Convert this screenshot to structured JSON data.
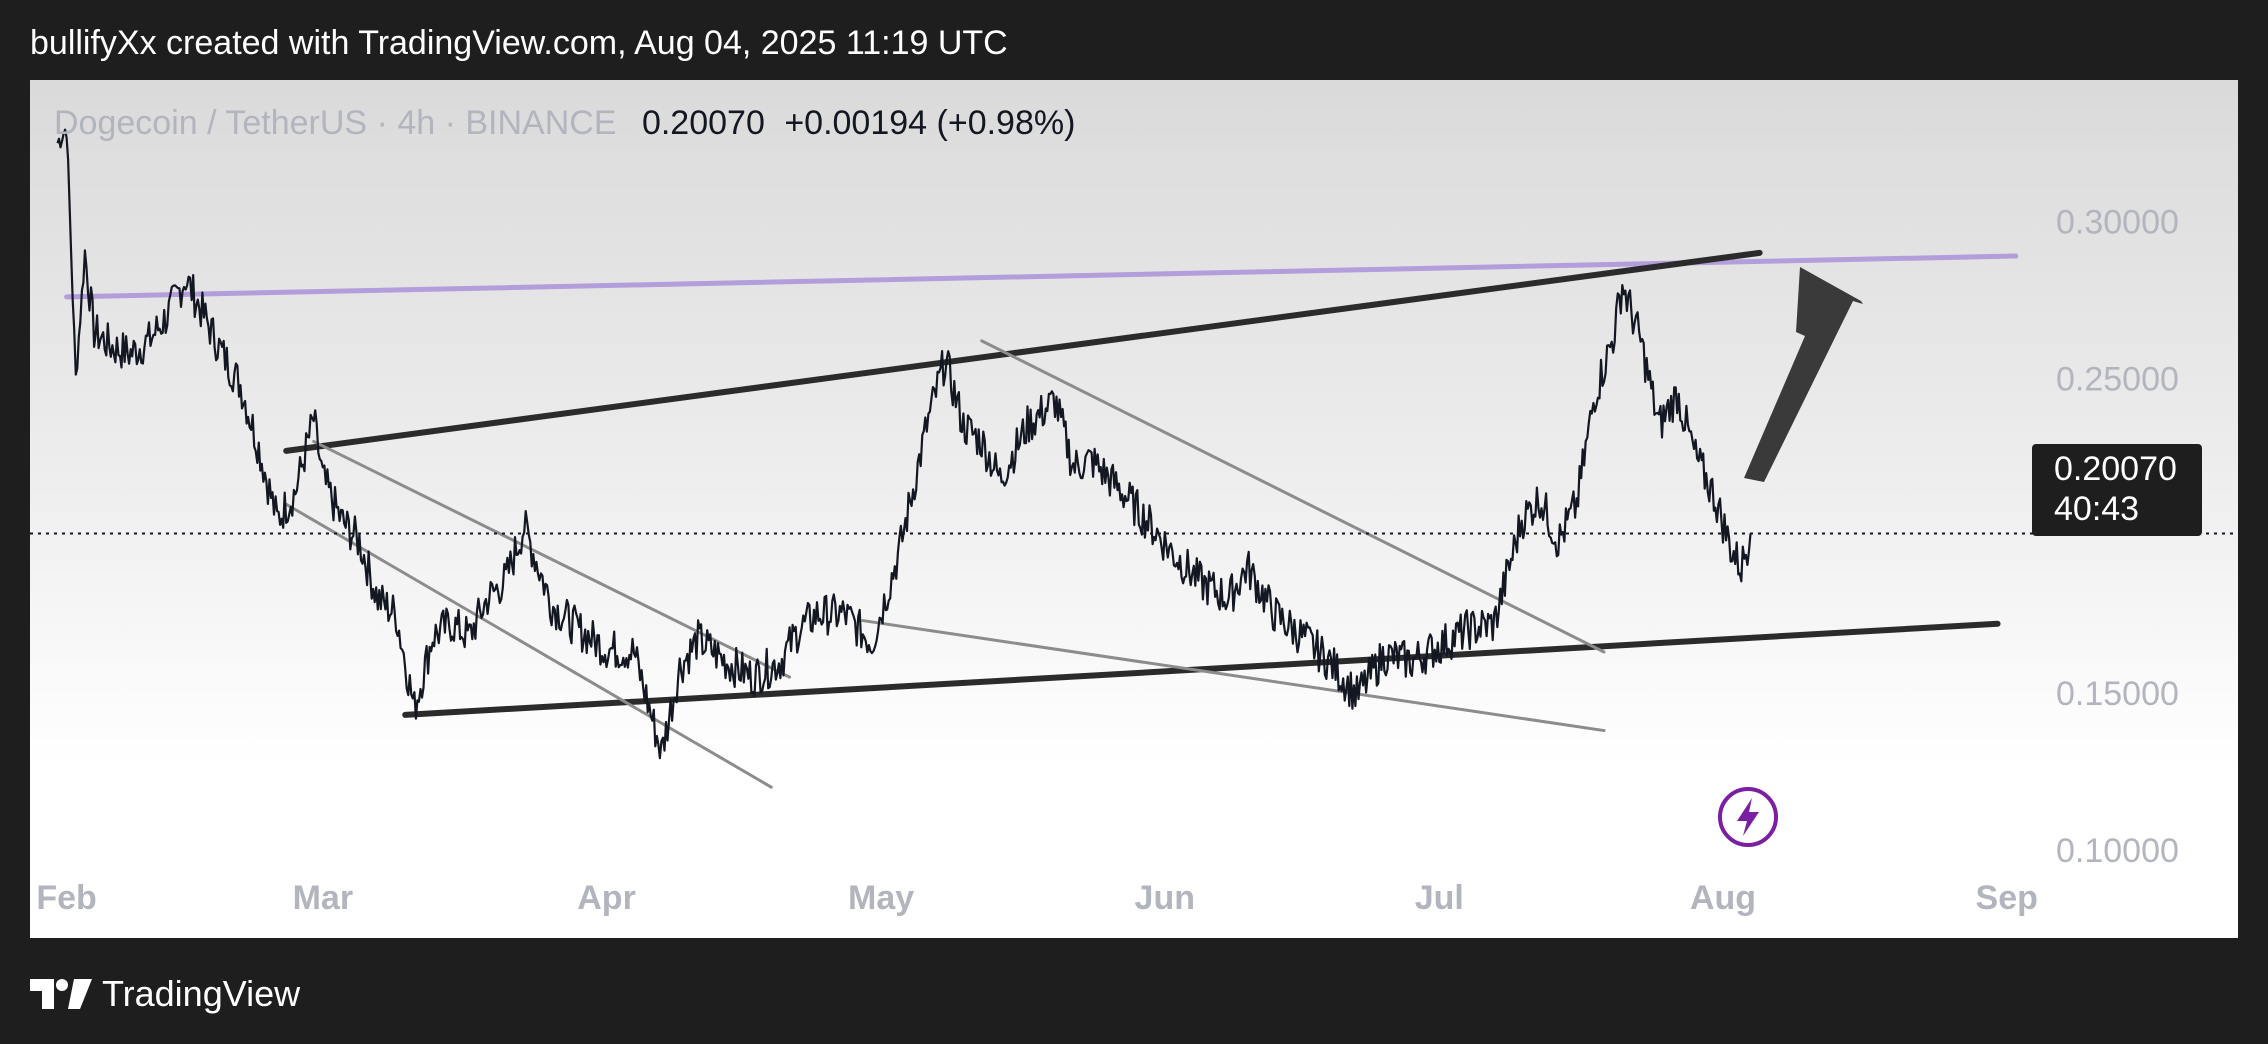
{
  "header": {
    "text": "bullifyXx created with TradingView.com, Aug 04, 2025 11:19 UTC"
  },
  "legend": {
    "symbol": "Dogecoin / TetherUS · 4h · BINANCE",
    "last": "0.20070",
    "change": "+0.00194 (+0.98%)"
  },
  "price_label": {
    "price": "0.20070",
    "countdown": "40:43"
  },
  "footer": {
    "brand": "TradingView"
  },
  "colors": {
    "candles": "#131722",
    "trendline_dark": "#2b2b2b",
    "trendline_gray": "#8c8c8c",
    "resistance_purple": "#b39ddb",
    "arrow": "#3a3a3a",
    "lightning_badge": "#7b1fa2"
  },
  "icons": {
    "lightning": "lightning-icon",
    "logo": "tradingview-logo-icon"
  },
  "chart_data": {
    "type": "line",
    "series": [
      {
        "dates": [
          "2025-01-31",
          "2025-02-01",
          "2025-02-02",
          "2025-02-03",
          "2025-02-04",
          "2025-02-06",
          "2025-02-08",
          "2025-02-10",
          "2025-02-12",
          "2025-02-14",
          "2025-02-16",
          "2025-02-18",
          "2025-02-20",
          "2025-02-22",
          "2025-02-24",
          "2025-02-26",
          "2025-02-28",
          "2025-03-01",
          "2025-03-03",
          "2025-03-05",
          "2025-03-07",
          "2025-03-09",
          "2025-03-11",
          "2025-03-13",
          "2025-03-15",
          "2025-03-17",
          "2025-03-19",
          "2025-03-21",
          "2025-03-23",
          "2025-03-26",
          "2025-03-29",
          "2025-04-01",
          "2025-04-04",
          "2025-04-07",
          "2025-04-09",
          "2025-04-11",
          "2025-04-14",
          "2025-04-17",
          "2025-04-20",
          "2025-04-22",
          "2025-04-24",
          "2025-04-27",
          "2025-04-30",
          "2025-05-03",
          "2025-05-06",
          "2025-05-08",
          "2025-05-10",
          "2025-05-12",
          "2025-05-14",
          "2025-05-17",
          "2025-05-20",
          "2025-05-22",
          "2025-05-24",
          "2025-05-27",
          "2025-05-30",
          "2025-06-02",
          "2025-06-05",
          "2025-06-08",
          "2025-06-10",
          "2025-06-13",
          "2025-06-16",
          "2025-06-19",
          "2025-06-22",
          "2025-06-25",
          "2025-06-28",
          "2025-07-01",
          "2025-07-04",
          "2025-07-07",
          "2025-07-10",
          "2025-07-12",
          "2025-07-14",
          "2025-07-16",
          "2025-07-18",
          "2025-07-20",
          "2025-07-21",
          "2025-07-23",
          "2025-07-25",
          "2025-07-27",
          "2025-07-29",
          "2025-07-31",
          "2025-08-02",
          "2025-08-03",
          "2025-08-04"
        ],
        "values": [
          0.325,
          0.33,
          0.25,
          0.29,
          0.265,
          0.26,
          0.258,
          0.262,
          0.27,
          0.282,
          0.27,
          0.258,
          0.248,
          0.228,
          0.205,
          0.214,
          0.237,
          0.218,
          0.205,
          0.198,
          0.18,
          0.175,
          0.145,
          0.168,
          0.172,
          0.168,
          0.18,
          0.186,
          0.203,
          0.178,
          0.17,
          0.164,
          0.163,
          0.131,
          0.158,
          0.167,
          0.16,
          0.155,
          0.16,
          0.17,
          0.175,
          0.175,
          0.166,
          0.195,
          0.235,
          0.256,
          0.235,
          0.23,
          0.218,
          0.235,
          0.243,
          0.222,
          0.224,
          0.215,
          0.205,
          0.194,
          0.185,
          0.18,
          0.19,
          0.175,
          0.168,
          0.16,
          0.149,
          0.162,
          0.16,
          0.165,
          0.17,
          0.172,
          0.205,
          0.212,
          0.198,
          0.21,
          0.245,
          0.263,
          0.28,
          0.262,
          0.235,
          0.245,
          0.225,
          0.213,
          0.195,
          0.19,
          0.2007
        ]
      }
    ],
    "x_ticks": [
      "Feb",
      "Mar",
      "Apr",
      "May",
      "Jun",
      "Jul",
      "Aug",
      "Sep"
    ],
    "y_ticks": [
      "0.30000",
      "0.25000",
      "0.15000",
      "0.10000"
    ],
    "ylim": [
      0.072,
      0.345
    ],
    "xlim": [
      "2025-01-28",
      "2025-09-03"
    ],
    "current_price": 0.2007,
    "drawings": [
      {
        "kind": "resistance-line",
        "from": [
          "2025-02-01",
          0.276
        ],
        "to": [
          "2025-09-02",
          0.289
        ]
      },
      {
        "kind": "upper-trendline",
        "from": [
          "2025-02-25",
          0.227
        ],
        "to": [
          "2025-08-05",
          0.29
        ]
      },
      {
        "kind": "lower-trendline",
        "from": [
          "2025-03-10",
          0.143
        ],
        "to": [
          "2025-08-31",
          0.172
        ]
      },
      {
        "kind": "falling-channel",
        "from": [
          "2025-02-28",
          0.23
        ],
        "to": [
          "2025-04-21",
          0.155
        ]
      },
      {
        "kind": "falling-channel",
        "from": [
          "2025-02-25",
          0.21
        ],
        "to": [
          "2025-04-19",
          0.12
        ]
      },
      {
        "kind": "falling-channel",
        "from": [
          "2025-05-12",
          0.262
        ],
        "to": [
          "2025-07-19",
          0.163
        ]
      },
      {
        "kind": "falling-channel",
        "from": [
          "2025-04-29",
          0.173
        ],
        "to": [
          "2025-07-19",
          0.138
        ]
      }
    ]
  }
}
